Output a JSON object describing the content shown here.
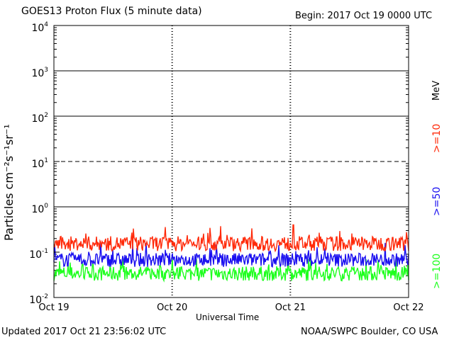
{
  "header": {
    "title": "GOES13 Proton Flux (5 minute data)",
    "begin": "Begin: 2017 Oct 19 0000 UTC"
  },
  "footer": {
    "updated": "Updated 2017 Oct 21 23:56:02 UTC",
    "source": "NOAA/SWPC Boulder, CO USA"
  },
  "colors": {
    "ge10": "#ff2a0a",
    "ge50": "#1a0ff0",
    "ge100": "#1eff1e",
    "axis": "#000000"
  },
  "chart_data": {
    "type": "line",
    "title": "GOES13 Proton Flux (5 minute data)",
    "xlabel": "Universal Time",
    "ylabel": "Particles cm⁻²s⁻¹sr⁻¹",
    "yscale": "log",
    "ylim": [
      0.01,
      10000
    ],
    "y_ticks": [
      {
        "base": "10",
        "exp": "-2",
        "value": 0.01
      },
      {
        "base": "10",
        "exp": "-1",
        "value": 0.1
      },
      {
        "base": "10",
        "exp": "0",
        "value": 1
      },
      {
        "base": "10",
        "exp": "1",
        "value": 10
      },
      {
        "base": "10",
        "exp": "2",
        "value": 100
      },
      {
        "base": "10",
        "exp": "3",
        "value": 1000
      },
      {
        "base": "10",
        "exp": "4",
        "value": 10000
      }
    ],
    "x_ticks": [
      "Oct 19",
      "Oct 20",
      "Oct 21",
      "Oct 22"
    ],
    "xlim_days": [
      0,
      3
    ],
    "gridlines": [
      1,
      10,
      100,
      1000
    ],
    "dashed_gridlines": [
      10
    ],
    "series_units": "MeV",
    "series": [
      {
        "name": ">=10",
        "color": "#ff2a0a",
        "typical_flux": 0.16,
        "range": [
          0.1,
          0.4
        ]
      },
      {
        "name": ">=50",
        "color": "#1a0ff0",
        "typical_flux": 0.07,
        "range": [
          0.045,
          0.16
        ]
      },
      {
        "name": ">=100",
        "color": "#1eff1e",
        "typical_flux": 0.035,
        "range": [
          0.022,
          0.07
        ]
      }
    ]
  }
}
